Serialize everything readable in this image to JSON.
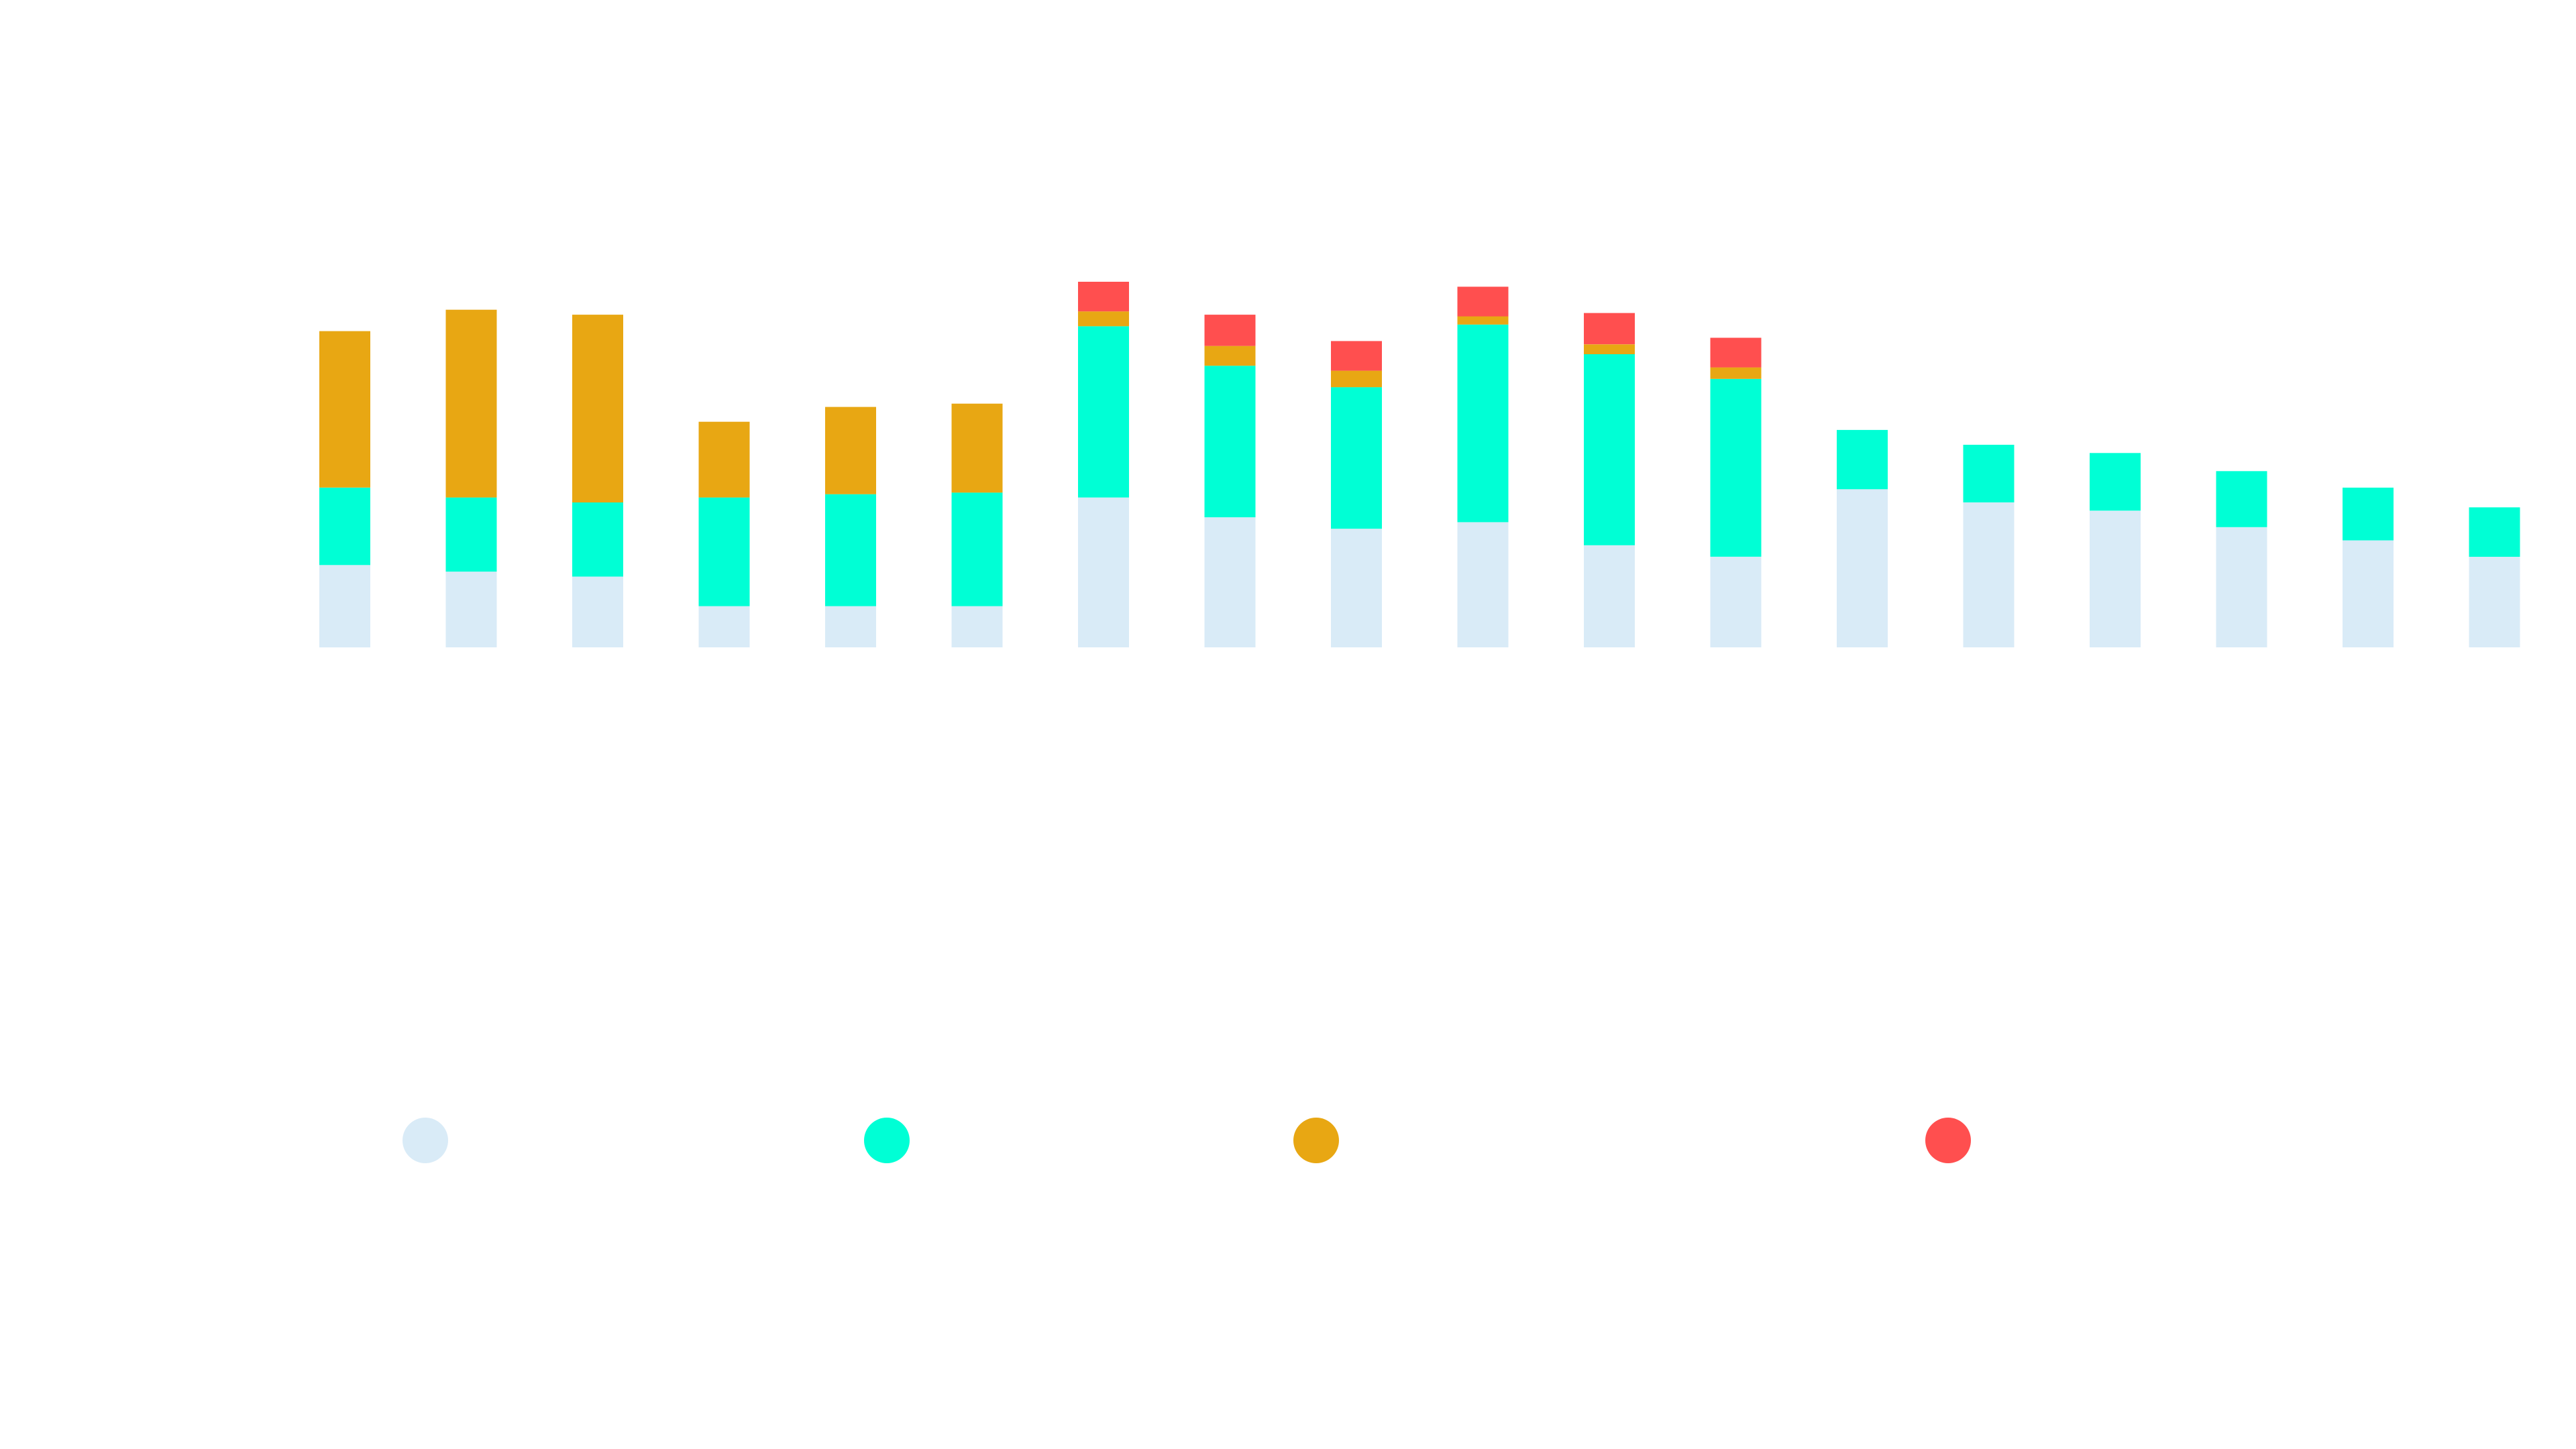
{
  "chart_data": {
    "type": "bar",
    "stacked": true,
    "title": "",
    "xlabel": "",
    "ylabel": "",
    "categories": [
      "",
      "",
      "",
      "",
      "",
      "",
      "",
      "",
      "",
      "",
      "",
      "",
      "",
      "",
      "",
      "",
      "",
      ""
    ],
    "ylim": [
      0,
      22
    ],
    "grid": false,
    "legend_position": "bottom",
    "series": [
      {
        "color": "#d9ebf7",
        "values": [
          5.0,
          4.6,
          4.3,
          2.5,
          2.5,
          2.5,
          9.1,
          7.9,
          7.2,
          7.6,
          6.2,
          5.5,
          9.6,
          8.8,
          8.3,
          7.3,
          6.5,
          5.5
        ]
      },
      {
        "color": "#00ffd5",
        "values": [
          4.7,
          4.5,
          4.5,
          6.6,
          6.8,
          6.9,
          10.4,
          9.2,
          8.6,
          12.0,
          11.6,
          10.8,
          3.6,
          3.5,
          3.5,
          3.4,
          3.2,
          3.0
        ]
      },
      {
        "color": "#e8a713",
        "values": [
          9.5,
          11.4,
          11.4,
          4.6,
          5.3,
          5.4,
          0.9,
          1.2,
          1.0,
          0.5,
          0.6,
          0.7,
          0.0,
          0.0,
          0.0,
          0.0,
          0.0,
          0.0
        ]
      },
      {
        "color": "#ff4f4f",
        "values": [
          0.0,
          0.0,
          0.0,
          0.0,
          0.0,
          0.0,
          1.8,
          1.9,
          1.8,
          1.8,
          1.9,
          1.8,
          0.0,
          0.0,
          0.0,
          0.0,
          0.0,
          0.0
        ]
      }
    ]
  }
}
